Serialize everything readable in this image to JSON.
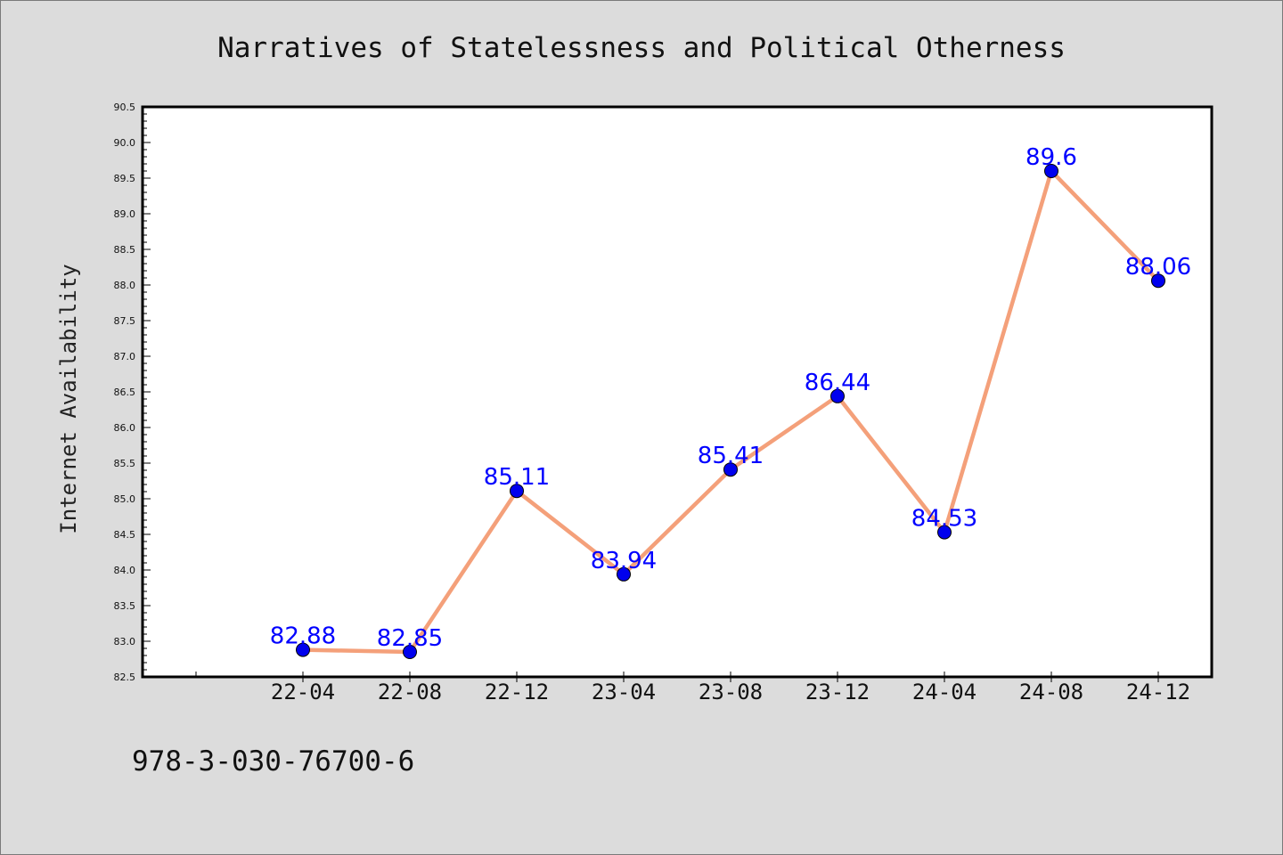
{
  "chart_data": {
    "type": "line",
    "title": "Narratives of Statelessness and Political Otherness",
    "xlabel": "",
    "ylabel": "Internet Availability",
    "categories": [
      "22-04",
      "22-08",
      "22-12",
      "23-04",
      "23-08",
      "23-12",
      "24-04",
      "24-08",
      "24-12"
    ],
    "series": [
      {
        "values": [
          82.88,
          82.85,
          85.11,
          83.94,
          85.41,
          86.44,
          84.53,
          89.6,
          88.06
        ],
        "labels": [
          "82.88",
          "82.85",
          "85.11",
          "83.94",
          "85.41",
          "86.44",
          "84.53",
          "89.6",
          "88.06"
        ]
      }
    ],
    "ylim": [
      82.5,
      90.5
    ],
    "yticks": [
      "82.5",
      "83.0",
      "83.5",
      "84.0",
      "84.5",
      "85.0",
      "85.5",
      "86.0",
      "86.5",
      "87.0",
      "87.5",
      "88.0",
      "88.5",
      "89.0",
      "89.5",
      "90.0",
      "90.5"
    ],
    "grid": false,
    "legend": "none",
    "colors": {
      "line": "#f4a07a",
      "marker": "#0000ee",
      "label": "#0000ff",
      "background": "#dcdcdc",
      "plot_background": "#ffffff"
    }
  },
  "footer": {
    "isbn": "978-3-030-76700-6"
  }
}
